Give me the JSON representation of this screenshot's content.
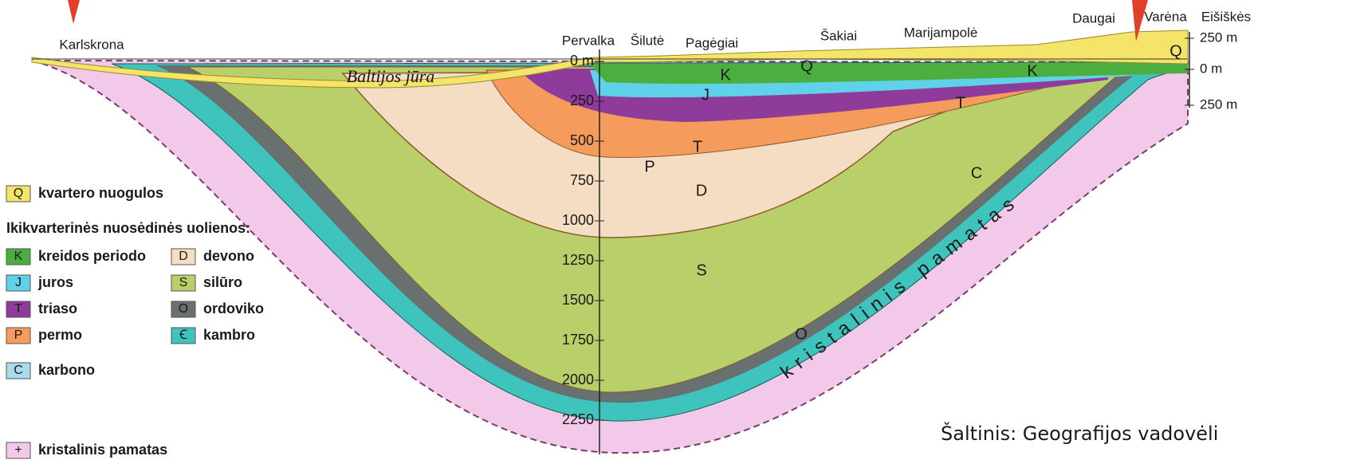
{
  "places": [
    "Karlskrona",
    "Pervalka",
    "Šilutė",
    "Pagėgiai",
    "Šakiai",
    "Marijampolė",
    "Daugai",
    "Varėna",
    "Eišiškės"
  ],
  "sea": "Baltijos jūra",
  "depth_labels": [
    "0 m",
    "250",
    "500",
    "750",
    "1000",
    "1250",
    "1500",
    "1750",
    "2000",
    "2250"
  ],
  "height_labels": [
    "250 m",
    "0 m",
    "250 m"
  ],
  "layer_letters": [
    "Q",
    "Q",
    "K",
    "K",
    "J",
    "T",
    "T",
    "P",
    "D",
    "S",
    "O",
    "C"
  ],
  "basement_text": "kristalinis pamatas",
  "legend": {
    "quaternary": {
      "code": "Q",
      "label": "kvartero nuogulos"
    },
    "header": "Ikikvarterinės nuosėdinės uolienos:",
    "items": [
      {
        "code": "K",
        "label": "kreidos periodo"
      },
      {
        "code": "J",
        "label": "juros"
      },
      {
        "code": "T",
        "label": "triaso"
      },
      {
        "code": "P",
        "label": "permo"
      },
      {
        "code": "C",
        "label": "karbono"
      },
      {
        "code": "D",
        "label": "devono"
      },
      {
        "code": "S",
        "label": "silūro"
      },
      {
        "code": "O",
        "label": "ordoviko"
      },
      {
        "code": "Ꞓ",
        "label": "kambro"
      }
    ],
    "basement": {
      "code": "+",
      "label": "kristalinis pamatas"
    }
  },
  "source": "Šaltinis: Geografijos vadovėli"
}
